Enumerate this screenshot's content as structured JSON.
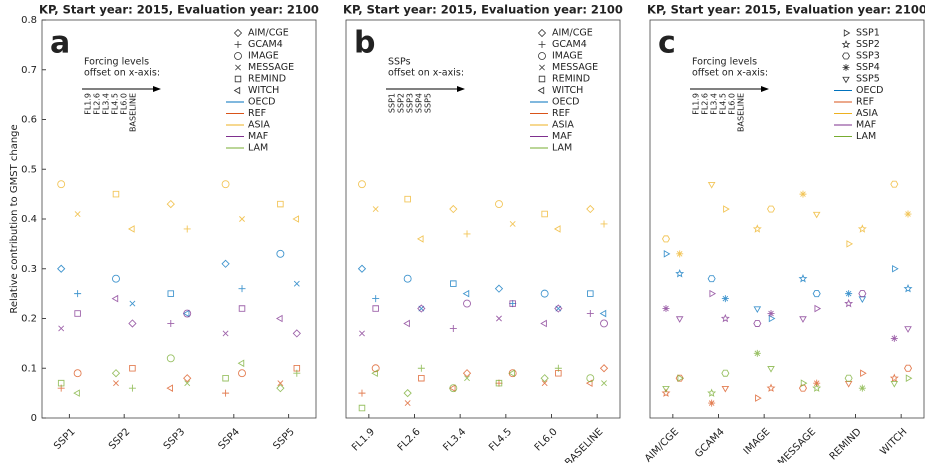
{
  "chart_data": [
    {
      "type": "scatter",
      "panel": "a",
      "title": "KP, Start year: 2015, Evaluation year: 2100",
      "ylabel": "Relative contribution to GMST change",
      "annotation": [
        "Forcing levels",
        "offset on x-axis:"
      ],
      "offset_labels": [
        "FL1.9",
        "FL2.6",
        "FL3.4",
        "FL4.5",
        "FL6.0",
        "BASELINE"
      ],
      "model_legend": [
        "AIM/CGE",
        "GCAM4",
        "IMAGE",
        "MESSAGE",
        "REMIND",
        "WITCH"
      ],
      "marker_shapes": [
        "diamond",
        "plus",
        "circle",
        "cross",
        "square",
        "tri-left"
      ],
      "xlim": [
        0.5,
        5.5
      ],
      "xticks": [
        {
          "value": 1,
          "label": "SSP1"
        },
        {
          "value": 2,
          "label": "SSP2"
        },
        {
          "value": 3,
          "label": "SSP3"
        },
        {
          "value": 4,
          "label": "SSP4"
        },
        {
          "value": 5,
          "label": "SSP5"
        }
      ],
      "ylim": [
        0,
        0.8
      ],
      "yticks": [
        0,
        0.1,
        0.2,
        0.3,
        0.4,
        0.5,
        0.6,
        0.7,
        0.8
      ],
      "x": [
        0.85,
        1.15,
        1.85,
        2.15,
        2.85,
        3.15,
        3.85,
        4.15,
        4.85,
        5.15
      ],
      "series": [
        {
          "name": "OECD",
          "color": "#0072bd",
          "values": [
            0.3,
            0.25,
            0.28,
            0.23,
            0.25,
            0.21,
            0.31,
            0.26,
            0.33,
            0.27
          ]
        },
        {
          "name": "REF",
          "color": "#d95319",
          "values": [
            0.06,
            0.09,
            0.07,
            0.1,
            0.06,
            0.08,
            0.05,
            0.09,
            0.07,
            0.1
          ]
        },
        {
          "name": "ASIA",
          "color": "#edb120",
          "values": [
            0.47,
            0.41,
            0.45,
            0.38,
            0.43,
            0.38,
            0.47,
            0.4,
            0.43,
            0.4
          ]
        },
        {
          "name": "MAF",
          "color": "#7e2f8e",
          "values": [
            0.18,
            0.21,
            0.24,
            0.19,
            0.19,
            0.21,
            0.17,
            0.22,
            0.2,
            0.17
          ]
        },
        {
          "name": "LAM",
          "color": "#77ac30",
          "values": [
            0.07,
            0.05,
            0.09,
            0.06,
            0.12,
            0.07,
            0.08,
            0.11,
            0.06,
            0.09
          ]
        }
      ]
    },
    {
      "type": "scatter",
      "panel": "b",
      "title": "KP, Start year: 2015, Evaluation year: 2100",
      "annotation": [
        "SSPs",
        "offset on x-axis:"
      ],
      "offset_labels": [
        "SSP1",
        "SSP2",
        "SSP3",
        "SSP4",
        "SSP5"
      ],
      "model_legend": [
        "AIM/CGE",
        "GCAM4",
        "IMAGE",
        "MESSAGE",
        "REMIND",
        "WITCH"
      ],
      "marker_shapes": [
        "diamond",
        "plus",
        "circle",
        "cross",
        "square",
        "tri-left"
      ],
      "xlim": [
        0.5,
        6.5
      ],
      "xticks": [
        {
          "value": 1,
          "label": "FL1.9"
        },
        {
          "value": 2,
          "label": "FL2.6"
        },
        {
          "value": 3,
          "label": "FL3.4"
        },
        {
          "value": 4,
          "label": "FL4.5"
        },
        {
          "value": 5,
          "label": "FL6.0"
        },
        {
          "value": 6,
          "label": "BASELINE"
        }
      ],
      "ylim": [
        0,
        0.8
      ],
      "x": [
        0.85,
        1.15,
        1.85,
        2.15,
        2.85,
        3.15,
        3.85,
        4.15,
        4.85,
        5.15,
        5.85,
        6.15
      ],
      "series": [
        {
          "name": "OECD",
          "color": "#0072bd",
          "values": [
            0.3,
            0.24,
            0.28,
            0.22,
            0.27,
            0.25,
            0.26,
            0.23,
            0.25,
            0.22,
            0.25,
            0.21
          ]
        },
        {
          "name": "REF",
          "color": "#d95319",
          "values": [
            0.05,
            0.1,
            0.03,
            0.08,
            0.06,
            0.09,
            0.07,
            0.09,
            0.07,
            0.09,
            0.07,
            0.1
          ]
        },
        {
          "name": "ASIA",
          "color": "#edb120",
          "values": [
            0.47,
            0.42,
            0.44,
            0.36,
            0.42,
            0.37,
            0.43,
            0.39,
            0.41,
            0.38,
            0.42,
            0.39
          ]
        },
        {
          "name": "MAF",
          "color": "#7e2f8e",
          "values": [
            0.17,
            0.22,
            0.19,
            0.22,
            0.18,
            0.23,
            0.2,
            0.23,
            0.19,
            0.22,
            0.21,
            0.19
          ]
        },
        {
          "name": "LAM",
          "color": "#77ac30",
          "values": [
            0.02,
            0.09,
            0.05,
            0.1,
            0.06,
            0.08,
            0.07,
            0.09,
            0.08,
            0.1,
            0.08,
            0.07
          ]
        }
      ]
    },
    {
      "type": "scatter",
      "panel": "c",
      "title": "KP, Start year: 2015, Evaluation year: 2100",
      "annotation": [
        "Forcing levels",
        "offset on x-axis:"
      ],
      "offset_labels": [
        "FL1.9",
        "FL2.6",
        "FL3.4",
        "FL4.5",
        "FL6.0",
        "BASELINE"
      ],
      "model_legend": [
        "SSP1",
        "SSP2",
        "SSP3",
        "SSP4",
        "SSP5"
      ],
      "marker_shapes": [
        "tri-right",
        "star",
        "hexagon",
        "asterisk",
        "tri-down"
      ],
      "xlim": [
        0.5,
        6.5
      ],
      "xticks": [
        {
          "value": 1,
          "label": "AIM/CGE"
        },
        {
          "value": 2,
          "label": "GCAM4"
        },
        {
          "value": 3,
          "label": "IMAGE"
        },
        {
          "value": 4,
          "label": "MESSAGE"
        },
        {
          "value": 5,
          "label": "REMIND"
        },
        {
          "value": 6,
          "label": "WITCH"
        }
      ],
      "ylim": [
        0,
        0.8
      ],
      "x": [
        0.85,
        1.15,
        1.85,
        2.15,
        2.85,
        3.15,
        3.85,
        4.15,
        4.85,
        5.15,
        5.85,
        6.15
      ],
      "series": [
        {
          "name": "OECD",
          "color": "#0072bd",
          "values": [
            0.33,
            0.29,
            0.28,
            0.24,
            0.22,
            0.2,
            0.28,
            0.25,
            0.25,
            0.24,
            0.3,
            0.26
          ]
        },
        {
          "name": "REF",
          "color": "#d95319",
          "values": [
            0.05,
            0.08,
            0.03,
            0.06,
            0.04,
            0.06,
            0.06,
            0.07,
            0.07,
            0.09,
            0.08,
            0.1
          ]
        },
        {
          "name": "ASIA",
          "color": "#edb120",
          "values": [
            0.36,
            0.33,
            0.47,
            0.42,
            0.38,
            0.42,
            0.45,
            0.41,
            0.35,
            0.38,
            0.47,
            0.41
          ]
        },
        {
          "name": "MAF",
          "color": "#7e2f8e",
          "values": [
            0.22,
            0.2,
            0.25,
            0.2,
            0.19,
            0.21,
            0.2,
            0.22,
            0.23,
            0.25,
            0.16,
            0.18
          ]
        },
        {
          "name": "LAM",
          "color": "#77ac30",
          "values": [
            0.06,
            0.08,
            0.05,
            0.09,
            0.13,
            0.1,
            0.07,
            0.06,
            0.08,
            0.06,
            0.07,
            0.08
          ]
        }
      ]
    }
  ]
}
